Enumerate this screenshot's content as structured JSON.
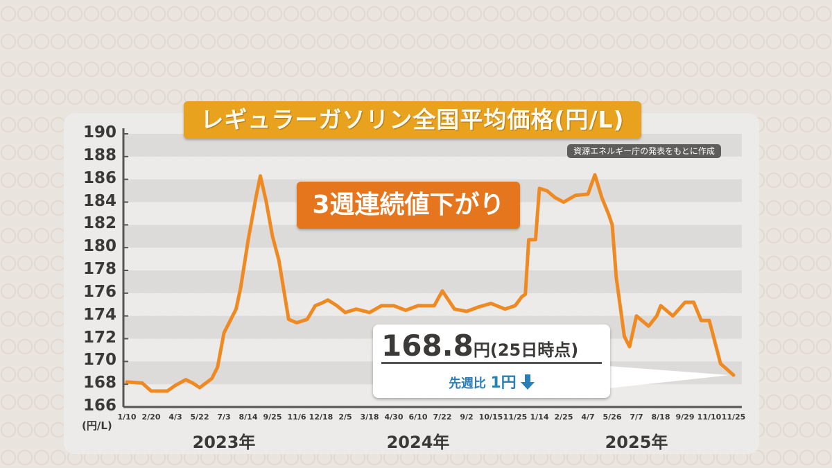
{
  "colors": {
    "line": "#ef8a22",
    "title_bg": "#e8a21e",
    "annotation_bg": "#e5761e",
    "stripe": "#dcdbd9",
    "callout_accent": "#2780b8"
  },
  "chart_data": {
    "type": "line",
    "title": "レギュラーガソリン全国平均価格(円/L)",
    "source_note": "資源エネルギー庁の発表をもとに作成",
    "annotation": "3週連続値下がり",
    "ylabel": "(円/L)",
    "ylim": [
      166,
      190
    ],
    "yticks": [
      190,
      188,
      186,
      184,
      182,
      180,
      178,
      176,
      174,
      172,
      170,
      168,
      166
    ],
    "grid": "horizontal stripes",
    "xticks": [
      {
        "date": "2023-01-10",
        "label": "1/10"
      },
      {
        "date": "2023-02-20",
        "label": "2/20"
      },
      {
        "date": "2023-04-03",
        "label": "4/3"
      },
      {
        "date": "2023-05-22",
        "label": "5/22"
      },
      {
        "date": "2023-07-03",
        "label": "7/3"
      },
      {
        "date": "2023-08-14",
        "label": "8/14"
      },
      {
        "date": "2023-09-25",
        "label": "9/25"
      },
      {
        "date": "2023-11-06",
        "label": "11/6"
      },
      {
        "date": "2023-12-18",
        "label": "12/18"
      },
      {
        "date": "2024-02-05",
        "label": "2/5"
      },
      {
        "date": "2024-03-18",
        "label": "3/18"
      },
      {
        "date": "2024-04-30",
        "label": "4/30"
      },
      {
        "date": "2024-06-10",
        "label": "6/10"
      },
      {
        "date": "2024-07-22",
        "label": "7/22"
      },
      {
        "date": "2024-09-02",
        "label": "9/2"
      },
      {
        "date": "2024-10-15",
        "label": "10/15"
      },
      {
        "date": "2024-11-25",
        "label": "11/25"
      },
      {
        "date": "2025-01-14",
        "label": "1/14"
      },
      {
        "date": "2025-02-25",
        "label": "2/25"
      },
      {
        "date": "2025-04-07",
        "label": "4/7"
      },
      {
        "date": "2025-05-26",
        "label": "5/26"
      },
      {
        "date": "2025-07-07",
        "label": "7/7"
      },
      {
        "date": "2025-08-18",
        "label": "8/18"
      },
      {
        "date": "2025-09-29",
        "label": "9/29"
      },
      {
        "date": "2025-11-10",
        "label": "11/10"
      },
      {
        "date": "2025-11-25",
        "label": "11/25"
      }
    ],
    "years": [
      {
        "label": "2023年",
        "date": "2023-07-03"
      },
      {
        "label": "2024年",
        "date": "2024-06-10"
      },
      {
        "label": "2025年",
        "date": "2025-07-07"
      }
    ],
    "series": [
      {
        "points": [
          [
            "2023-01-10",
            168.2
          ],
          [
            "2023-02-05",
            168.1
          ],
          [
            "2023-02-20",
            167.4
          ],
          [
            "2023-03-20",
            167.4
          ],
          [
            "2023-04-03",
            167.9
          ],
          [
            "2023-04-24",
            168.4
          ],
          [
            "2023-05-08",
            168.1
          ],
          [
            "2023-05-22",
            167.7
          ],
          [
            "2023-06-12",
            168.5
          ],
          [
            "2023-06-22",
            169.5
          ],
          [
            "2023-07-03",
            172.5
          ],
          [
            "2023-07-24",
            174.6
          ],
          [
            "2023-08-01",
            176.5
          ],
          [
            "2023-08-14",
            180.7
          ],
          [
            "2023-08-28",
            184.6
          ],
          [
            "2023-09-04",
            186.3
          ],
          [
            "2023-09-14",
            184.1
          ],
          [
            "2023-09-25",
            181.0
          ],
          [
            "2023-10-06",
            178.9
          ],
          [
            "2023-10-23",
            173.7
          ],
          [
            "2023-11-06",
            173.4
          ],
          [
            "2023-11-24",
            173.7
          ],
          [
            "2023-12-08",
            174.9
          ],
          [
            "2023-12-18",
            175.1
          ],
          [
            "2024-01-01",
            175.4
          ],
          [
            "2024-01-19",
            174.9
          ],
          [
            "2024-02-05",
            174.3
          ],
          [
            "2024-02-24",
            174.6
          ],
          [
            "2024-03-18",
            174.3
          ],
          [
            "2024-04-08",
            174.9
          ],
          [
            "2024-04-30",
            174.9
          ],
          [
            "2024-05-20",
            174.5
          ],
          [
            "2024-06-10",
            174.9
          ],
          [
            "2024-07-08",
            174.9
          ],
          [
            "2024-07-22",
            176.2
          ],
          [
            "2024-08-12",
            174.6
          ],
          [
            "2024-09-02",
            174.4
          ],
          [
            "2024-09-24",
            174.8
          ],
          [
            "2024-10-15",
            175.1
          ],
          [
            "2024-11-08",
            174.6
          ],
          [
            "2024-11-25",
            174.9
          ],
          [
            "2024-12-09",
            175.7
          ],
          [
            "2024-12-16",
            175.9
          ],
          [
            "2024-12-23",
            180.7
          ],
          [
            "2025-01-06",
            180.7
          ],
          [
            "2025-01-14",
            185.2
          ],
          [
            "2025-01-27",
            185.0
          ],
          [
            "2025-02-10",
            184.4
          ],
          [
            "2025-02-25",
            184.0
          ],
          [
            "2025-03-17",
            184.6
          ],
          [
            "2025-04-07",
            184.7
          ],
          [
            "2025-04-21",
            186.4
          ],
          [
            "2025-05-05",
            184.4
          ],
          [
            "2025-05-19",
            182.9
          ],
          [
            "2025-05-26",
            182.0
          ],
          [
            "2025-06-02",
            177.4
          ],
          [
            "2025-06-16",
            172.2
          ],
          [
            "2025-06-25",
            171.3
          ],
          [
            "2025-07-07",
            174.0
          ],
          [
            "2025-07-28",
            173.1
          ],
          [
            "2025-08-11",
            174.0
          ],
          [
            "2025-08-18",
            174.9
          ],
          [
            "2025-09-08",
            174.0
          ],
          [
            "2025-09-29",
            175.2
          ],
          [
            "2025-10-14",
            175.2
          ],
          [
            "2025-10-27",
            173.6
          ],
          [
            "2025-11-10",
            173.6
          ],
          [
            "2025-11-17",
            169.8
          ],
          [
            "2025-11-25",
            168.8
          ]
        ]
      }
    ]
  },
  "callout": {
    "price": "168.8",
    "unit": "円",
    "note": "(25日時点)",
    "compare_label": "先週比",
    "change": "1円",
    "direction_icon": "arrow-down-icon"
  }
}
